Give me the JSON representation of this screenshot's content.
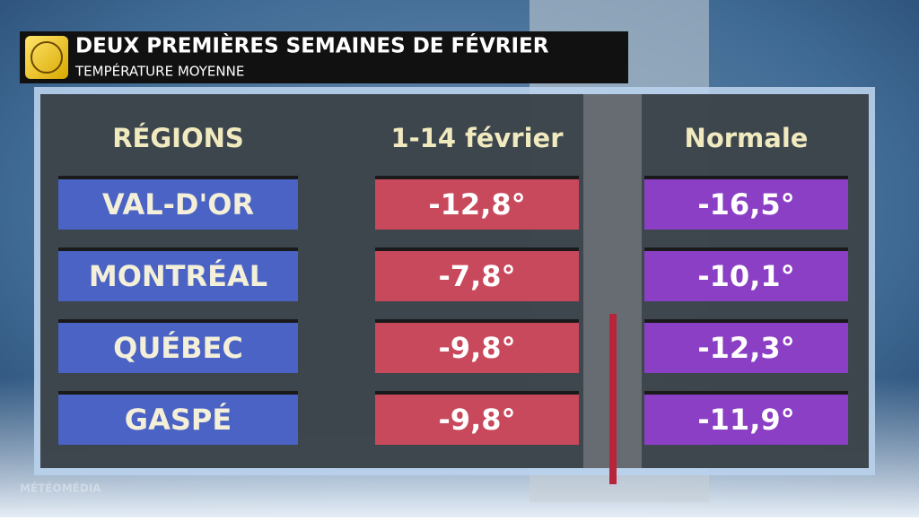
{
  "header": {
    "title": "DEUX PREMIÈRES SEMAINES DE FÉVRIER",
    "subtitle": "TEMPÉRATURE MOYENNE"
  },
  "table": {
    "columns": [
      "RÉGIONS",
      "1-14 février",
      "Normale"
    ],
    "rows": [
      [
        "VAL-D'OR",
        "-12,8°",
        "-16,5°"
      ],
      [
        "MONTRÉAL",
        "-7,8°",
        "-10,1°"
      ],
      [
        "QUÉBEC",
        "-9,8°",
        "-12,3°"
      ],
      [
        "GASPÉ",
        "-9,8°",
        "-11,9°"
      ]
    ]
  },
  "watermark": "MÉTÉOMÉDIA"
}
